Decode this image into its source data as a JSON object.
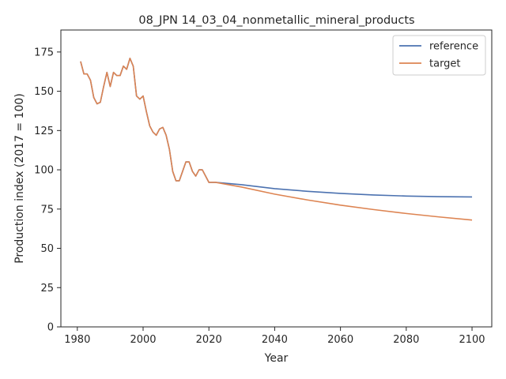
{
  "chart_data": {
    "type": "line",
    "title": "08_JPN 14_03_04_nonmetallic_mineral_products",
    "xlabel": "Year",
    "ylabel": "Production index (2017 = 100)",
    "xlim": [
      1975,
      2106
    ],
    "ylim": [
      0,
      189
    ],
    "xticks": [
      1980,
      2000,
      2020,
      2040,
      2060,
      2080,
      2100
    ],
    "yticks": [
      0,
      25,
      50,
      75,
      100,
      125,
      150,
      175
    ],
    "grid": false,
    "legend_position": "top-right",
    "series": [
      {
        "name": "reference",
        "color": "#4c72b0",
        "x": [
          1981,
          1982,
          1983,
          1984,
          1985,
          1986,
          1987,
          1988,
          1989,
          1990,
          1991,
          1992,
          1993,
          1994,
          1995,
          1996,
          1997,
          1998,
          1999,
          2000,
          2001,
          2002,
          2003,
          2004,
          2005,
          2006,
          2007,
          2008,
          2009,
          2010,
          2011,
          2012,
          2013,
          2014,
          2015,
          2016,
          2017,
          2018,
          2019,
          2020,
          2021,
          2022,
          2030,
          2040,
          2050,
          2060,
          2070,
          2080,
          2090,
          2100
        ],
        "y": [
          169,
          161,
          161,
          157,
          146,
          142,
          143,
          153,
          162,
          153,
          162,
          160,
          160,
          166,
          164,
          171,
          166,
          147,
          145,
          147,
          137,
          128,
          124,
          122,
          126,
          127,
          122,
          113,
          99,
          93,
          93,
          99,
          105,
          105,
          99,
          96,
          100,
          100,
          96,
          92,
          92,
          92,
          90.5,
          88,
          86.3,
          85,
          84,
          83.3,
          82.9,
          82.7
        ]
      },
      {
        "name": "target",
        "color": "#dd8452",
        "x": [
          1981,
          1982,
          1983,
          1984,
          1985,
          1986,
          1987,
          1988,
          1989,
          1990,
          1991,
          1992,
          1993,
          1994,
          1995,
          1996,
          1997,
          1998,
          1999,
          2000,
          2001,
          2002,
          2003,
          2004,
          2005,
          2006,
          2007,
          2008,
          2009,
          2010,
          2011,
          2012,
          2013,
          2014,
          2015,
          2016,
          2017,
          2018,
          2019,
          2020,
          2021,
          2022,
          2030,
          2040,
          2050,
          2060,
          2070,
          2080,
          2090,
          2100
        ],
        "y": [
          169,
          161,
          161,
          157,
          146,
          142,
          143,
          153,
          162,
          153,
          162,
          160,
          160,
          166,
          164,
          171,
          166,
          147,
          145,
          147,
          137,
          128,
          124,
          122,
          126,
          127,
          122,
          113,
          99,
          93,
          93,
          99,
          105,
          105,
          99,
          96,
          100,
          100,
          96,
          92,
          92,
          92,
          89,
          84.5,
          80.8,
          77.5,
          74.7,
          72.2,
          70,
          68
        ]
      }
    ]
  }
}
